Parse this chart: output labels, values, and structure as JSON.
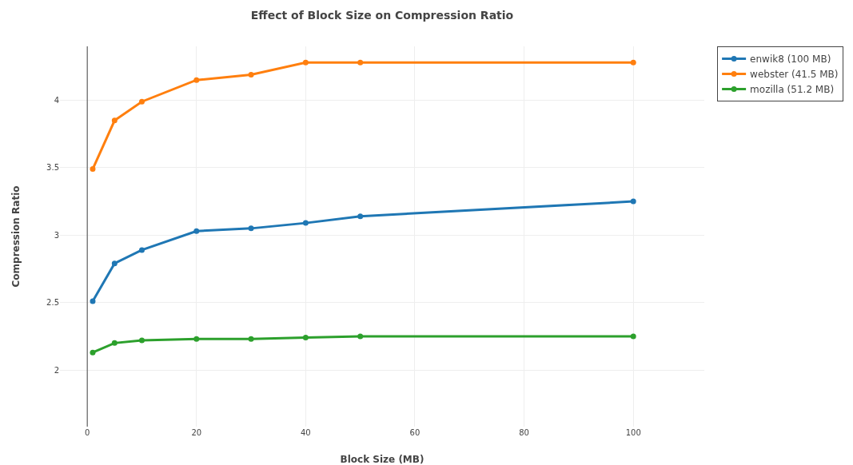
{
  "chart_data": {
    "type": "line",
    "title": "Effect of Block Size on Compression Ratio",
    "xlabel": "Block Size (MB)",
    "ylabel": "Compression Ratio",
    "x": [
      1,
      5,
      10,
      20,
      30,
      40,
      50,
      100
    ],
    "series": [
      {
        "name": "enwik8 (100 MB)",
        "color": "#1f77b4",
        "values": [
          2.51,
          2.79,
          2.89,
          3.03,
          3.05,
          3.09,
          3.14,
          3.25
        ]
      },
      {
        "name": "webster (41.5 MB)",
        "color": "#ff7f0e",
        "values": [
          3.49,
          3.85,
          3.99,
          4.15,
          4.19,
          4.28,
          4.28,
          4.28
        ]
      },
      {
        "name": "mozilla (51.2 MB)",
        "color": "#2ca02c",
        "values": [
          2.13,
          2.2,
          2.22,
          2.23,
          2.23,
          2.24,
          2.25,
          2.25
        ]
      }
    ],
    "xlim": [
      -5,
      113
    ],
    "xticks": [
      0,
      20,
      40,
      60,
      80,
      100
    ],
    "ylim": [
      1.58,
      4.4
    ],
    "yticks": [
      2,
      2.5,
      3,
      3.5,
      4
    ],
    "grid": true,
    "legend": "top right",
    "marker": "circle",
    "line_style": "solid"
  }
}
